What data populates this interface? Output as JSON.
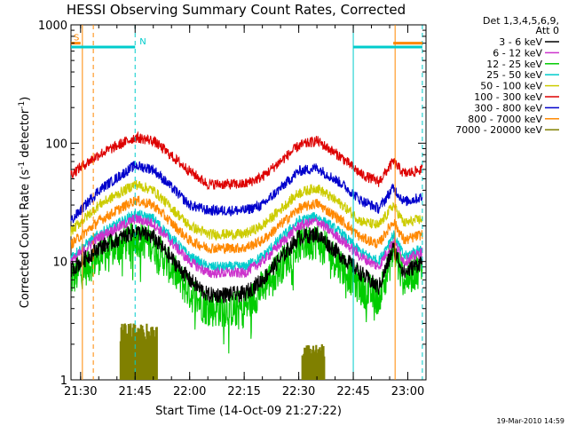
{
  "chart_data": {
    "type": "line",
    "title": "HESSI Observing Summary Count Rates, Corrected",
    "xlabel": "Start Time (14-Oct-09 21:27:22)",
    "ylabel_main": "Corrected Count Rate (s",
    "ylabel_sup1": "-1",
    "ylabel_mid": " detector",
    "ylabel_sup2": "-1",
    "ylabel_end": ")",
    "y_scale": "log",
    "ylim": [
      1,
      1000
    ],
    "y_ticks": [
      {
        "value": 1,
        "label": "1"
      },
      {
        "value": 10,
        "label": "10"
      },
      {
        "value": 100,
        "label": "100"
      },
      {
        "value": 1000,
        "label": "1000"
      }
    ],
    "xlim": [
      "21:27:22",
      "23:05:00"
    ],
    "x_ticks": [
      {
        "value": "21:30",
        "label": "21:30"
      },
      {
        "value": "21:45",
        "label": "21:45"
      },
      {
        "value": "22:00",
        "label": "22:00"
      },
      {
        "value": "22:15",
        "label": "22:15"
      },
      {
        "value": "22:30",
        "label": "22:30"
      },
      {
        "value": "22:45",
        "label": "22:45"
      },
      {
        "value": "23:00",
        "label": "23:00"
      }
    ],
    "legend_header": [
      "Det 1,3,4,5,6,9,",
      "Att 0"
    ],
    "legend_position": "right",
    "series": [
      {
        "name": "3 - 6 keV",
        "color": "#000000",
        "points": [
          [
            "21:27:22",
            8.5
          ],
          [
            "21:35:00",
            13
          ],
          [
            "21:45:00",
            18
          ],
          [
            "21:50:00",
            16
          ],
          [
            "22:00:00",
            7
          ],
          [
            "22:05:00",
            5.2
          ],
          [
            "22:15:00",
            5.3
          ],
          [
            "22:20:00",
            7
          ],
          [
            "22:30:00",
            16
          ],
          [
            "22:35:00",
            17
          ],
          [
            "22:42:00",
            11
          ],
          [
            "22:47:00",
            8
          ],
          [
            "22:52:00",
            6
          ],
          [
            "22:56:00",
            13
          ],
          [
            "22:59:00",
            8
          ],
          [
            "23:04:00",
            10
          ]
        ]
      },
      {
        "name": "6 - 12 keV",
        "color": "#cc33cc",
        "points": [
          [
            "21:27:22",
            10
          ],
          [
            "21:35:00",
            16
          ],
          [
            "21:45:00",
            23
          ],
          [
            "21:50:00",
            21
          ],
          [
            "22:00:00",
            10
          ],
          [
            "22:05:00",
            8
          ],
          [
            "22:15:00",
            8
          ],
          [
            "22:20:00",
            10
          ],
          [
            "22:30:00",
            20
          ],
          [
            "22:35:00",
            22
          ],
          [
            "22:42:00",
            15
          ],
          [
            "22:47:00",
            11
          ],
          [
            "22:52:00",
            9
          ],
          [
            "22:56:00",
            15
          ],
          [
            "22:59:00",
            10
          ],
          [
            "23:04:00",
            12
          ]
        ]
      },
      {
        "name": "12 - 25 keV",
        "color": "#00cc00",
        "points": [
          [
            "21:27:22",
            7
          ],
          [
            "21:35:00",
            11
          ],
          [
            "21:45:00",
            16
          ],
          [
            "21:50:00",
            14
          ],
          [
            "22:00:00",
            5.5
          ],
          [
            "22:05:00",
            4
          ],
          [
            "22:15:00",
            4
          ],
          [
            "22:20:00",
            6
          ],
          [
            "22:30:00",
            14
          ],
          [
            "22:35:00",
            15
          ],
          [
            "22:42:00",
            9
          ],
          [
            "22:47:00",
            6
          ],
          [
            "22:52:00",
            5
          ],
          [
            "22:56:00",
            12
          ],
          [
            "22:59:00",
            7
          ],
          [
            "23:04:00",
            9
          ]
        ]
      },
      {
        "name": "25 - 50 keV",
        "color": "#00cccc",
        "points": [
          [
            "21:27:22",
            11
          ],
          [
            "21:35:00",
            17
          ],
          [
            "21:45:00",
            25
          ],
          [
            "21:50:00",
            23
          ],
          [
            "22:00:00",
            11
          ],
          [
            "22:05:00",
            9
          ],
          [
            "22:15:00",
            9
          ],
          [
            "22:20:00",
            11
          ],
          [
            "22:30:00",
            22
          ],
          [
            "22:35:00",
            24
          ],
          [
            "22:42:00",
            17
          ],
          [
            "22:47:00",
            12
          ],
          [
            "22:52:00",
            10
          ],
          [
            "22:56:00",
            17
          ],
          [
            "22:59:00",
            11
          ],
          [
            "23:04:00",
            13
          ]
        ]
      },
      {
        "name": "50 - 100 keV",
        "color": "#cccc00",
        "points": [
          [
            "21:27:22",
            18
          ],
          [
            "21:35:00",
            30
          ],
          [
            "21:45:00",
            45
          ],
          [
            "21:50:00",
            40
          ],
          [
            "22:00:00",
            20
          ],
          [
            "22:05:00",
            17
          ],
          [
            "22:15:00",
            17
          ],
          [
            "22:20:00",
            20
          ],
          [
            "22:30:00",
            38
          ],
          [
            "22:35:00",
            42
          ],
          [
            "22:42:00",
            30
          ],
          [
            "22:47:00",
            22
          ],
          [
            "22:52:00",
            20
          ],
          [
            "22:56:00",
            30
          ],
          [
            "22:59:00",
            21
          ],
          [
            "23:04:00",
            23
          ]
        ]
      },
      {
        "name": "100 - 300 keV",
        "color": "#dd0000",
        "points": [
          [
            "21:27:22",
            55
          ],
          [
            "21:35:00",
            80
          ],
          [
            "21:45:00",
            112
          ],
          [
            "21:50:00",
            105
          ],
          [
            "22:00:00",
            58
          ],
          [
            "22:05:00",
            45
          ],
          [
            "22:15:00",
            45
          ],
          [
            "22:20:00",
            52
          ],
          [
            "22:30:00",
            95
          ],
          [
            "22:35:00",
            105
          ],
          [
            "22:42:00",
            75
          ],
          [
            "22:47:00",
            55
          ],
          [
            "22:52:00",
            47
          ],
          [
            "22:56:00",
            70
          ],
          [
            "22:59:00",
            55
          ],
          [
            "23:04:00",
            60
          ]
        ]
      },
      {
        "name": "300 - 800 keV",
        "color": "#0000cc",
        "points": [
          [
            "21:27:22",
            22
          ],
          [
            "21:35:00",
            40
          ],
          [
            "21:45:00",
            65
          ],
          [
            "21:50:00",
            60
          ],
          [
            "22:00:00",
            30
          ],
          [
            "22:05:00",
            27
          ],
          [
            "22:15:00",
            27
          ],
          [
            "22:20:00",
            30
          ],
          [
            "22:30:00",
            58
          ],
          [
            "22:35:00",
            62
          ],
          [
            "22:42:00",
            45
          ],
          [
            "22:47:00",
            33
          ],
          [
            "22:52:00",
            28
          ],
          [
            "22:56:00",
            42
          ],
          [
            "22:59:00",
            32
          ],
          [
            "23:04:00",
            35
          ]
        ]
      },
      {
        "name": "800 - 7000 keV",
        "color": "#ff8800",
        "points": [
          [
            "21:27:22",
            14
          ],
          [
            "21:35:00",
            22
          ],
          [
            "21:45:00",
            33
          ],
          [
            "21:50:00",
            30
          ],
          [
            "22:00:00",
            15
          ],
          [
            "22:05:00",
            13
          ],
          [
            "22:15:00",
            13
          ],
          [
            "22:20:00",
            15
          ],
          [
            "22:30:00",
            28
          ],
          [
            "22:35:00",
            31
          ],
          [
            "22:42:00",
            22
          ],
          [
            "22:47:00",
            16
          ],
          [
            "22:52:00",
            14
          ],
          [
            "22:56:00",
            22
          ],
          [
            "22:59:00",
            15
          ],
          [
            "23:04:00",
            17
          ]
        ]
      },
      {
        "name": "7000 - 20000 keV",
        "color": "#808000",
        "points": []
      }
    ],
    "bars_7000_20000": [
      {
        "start": "21:41:00",
        "end": "21:51:00",
        "peak": 3.0
      },
      {
        "start": "22:31:00",
        "end": "22:37:00",
        "peak": 2.0
      }
    ],
    "flag_bars": [
      {
        "label": "S",
        "color": "#ff8800",
        "start": "21:27:22",
        "end": "21:30:00",
        "value": 700
      },
      {
        "label": "N",
        "color": "#00cccc",
        "start": "21:27:22",
        "end": "21:45:00",
        "value": 650
      },
      {
        "label": "",
        "color": "#ff8800",
        "start": "22:56:00",
        "end": "23:04:00",
        "value": 700
      },
      {
        "label": "",
        "color": "#00cccc",
        "start": "22:45:00",
        "end": "23:04:00",
        "value": 650
      }
    ],
    "vertical_lines": [
      {
        "time": "21:30:30",
        "color": "#ff8800",
        "style": "solid"
      },
      {
        "time": "21:33:30",
        "color": "#ff8800",
        "style": "dashed"
      },
      {
        "time": "21:45:00",
        "color": "#00cccc",
        "style": "dashed"
      },
      {
        "time": "22:45:00",
        "color": "#00cccc",
        "style": "solid"
      },
      {
        "time": "22:56:30",
        "color": "#ff8800",
        "style": "solid"
      },
      {
        "time": "23:04:00",
        "color": "#00cccc",
        "style": "dashed"
      }
    ],
    "grid": false,
    "stamp": "19-Mar-2010 14:59"
  }
}
